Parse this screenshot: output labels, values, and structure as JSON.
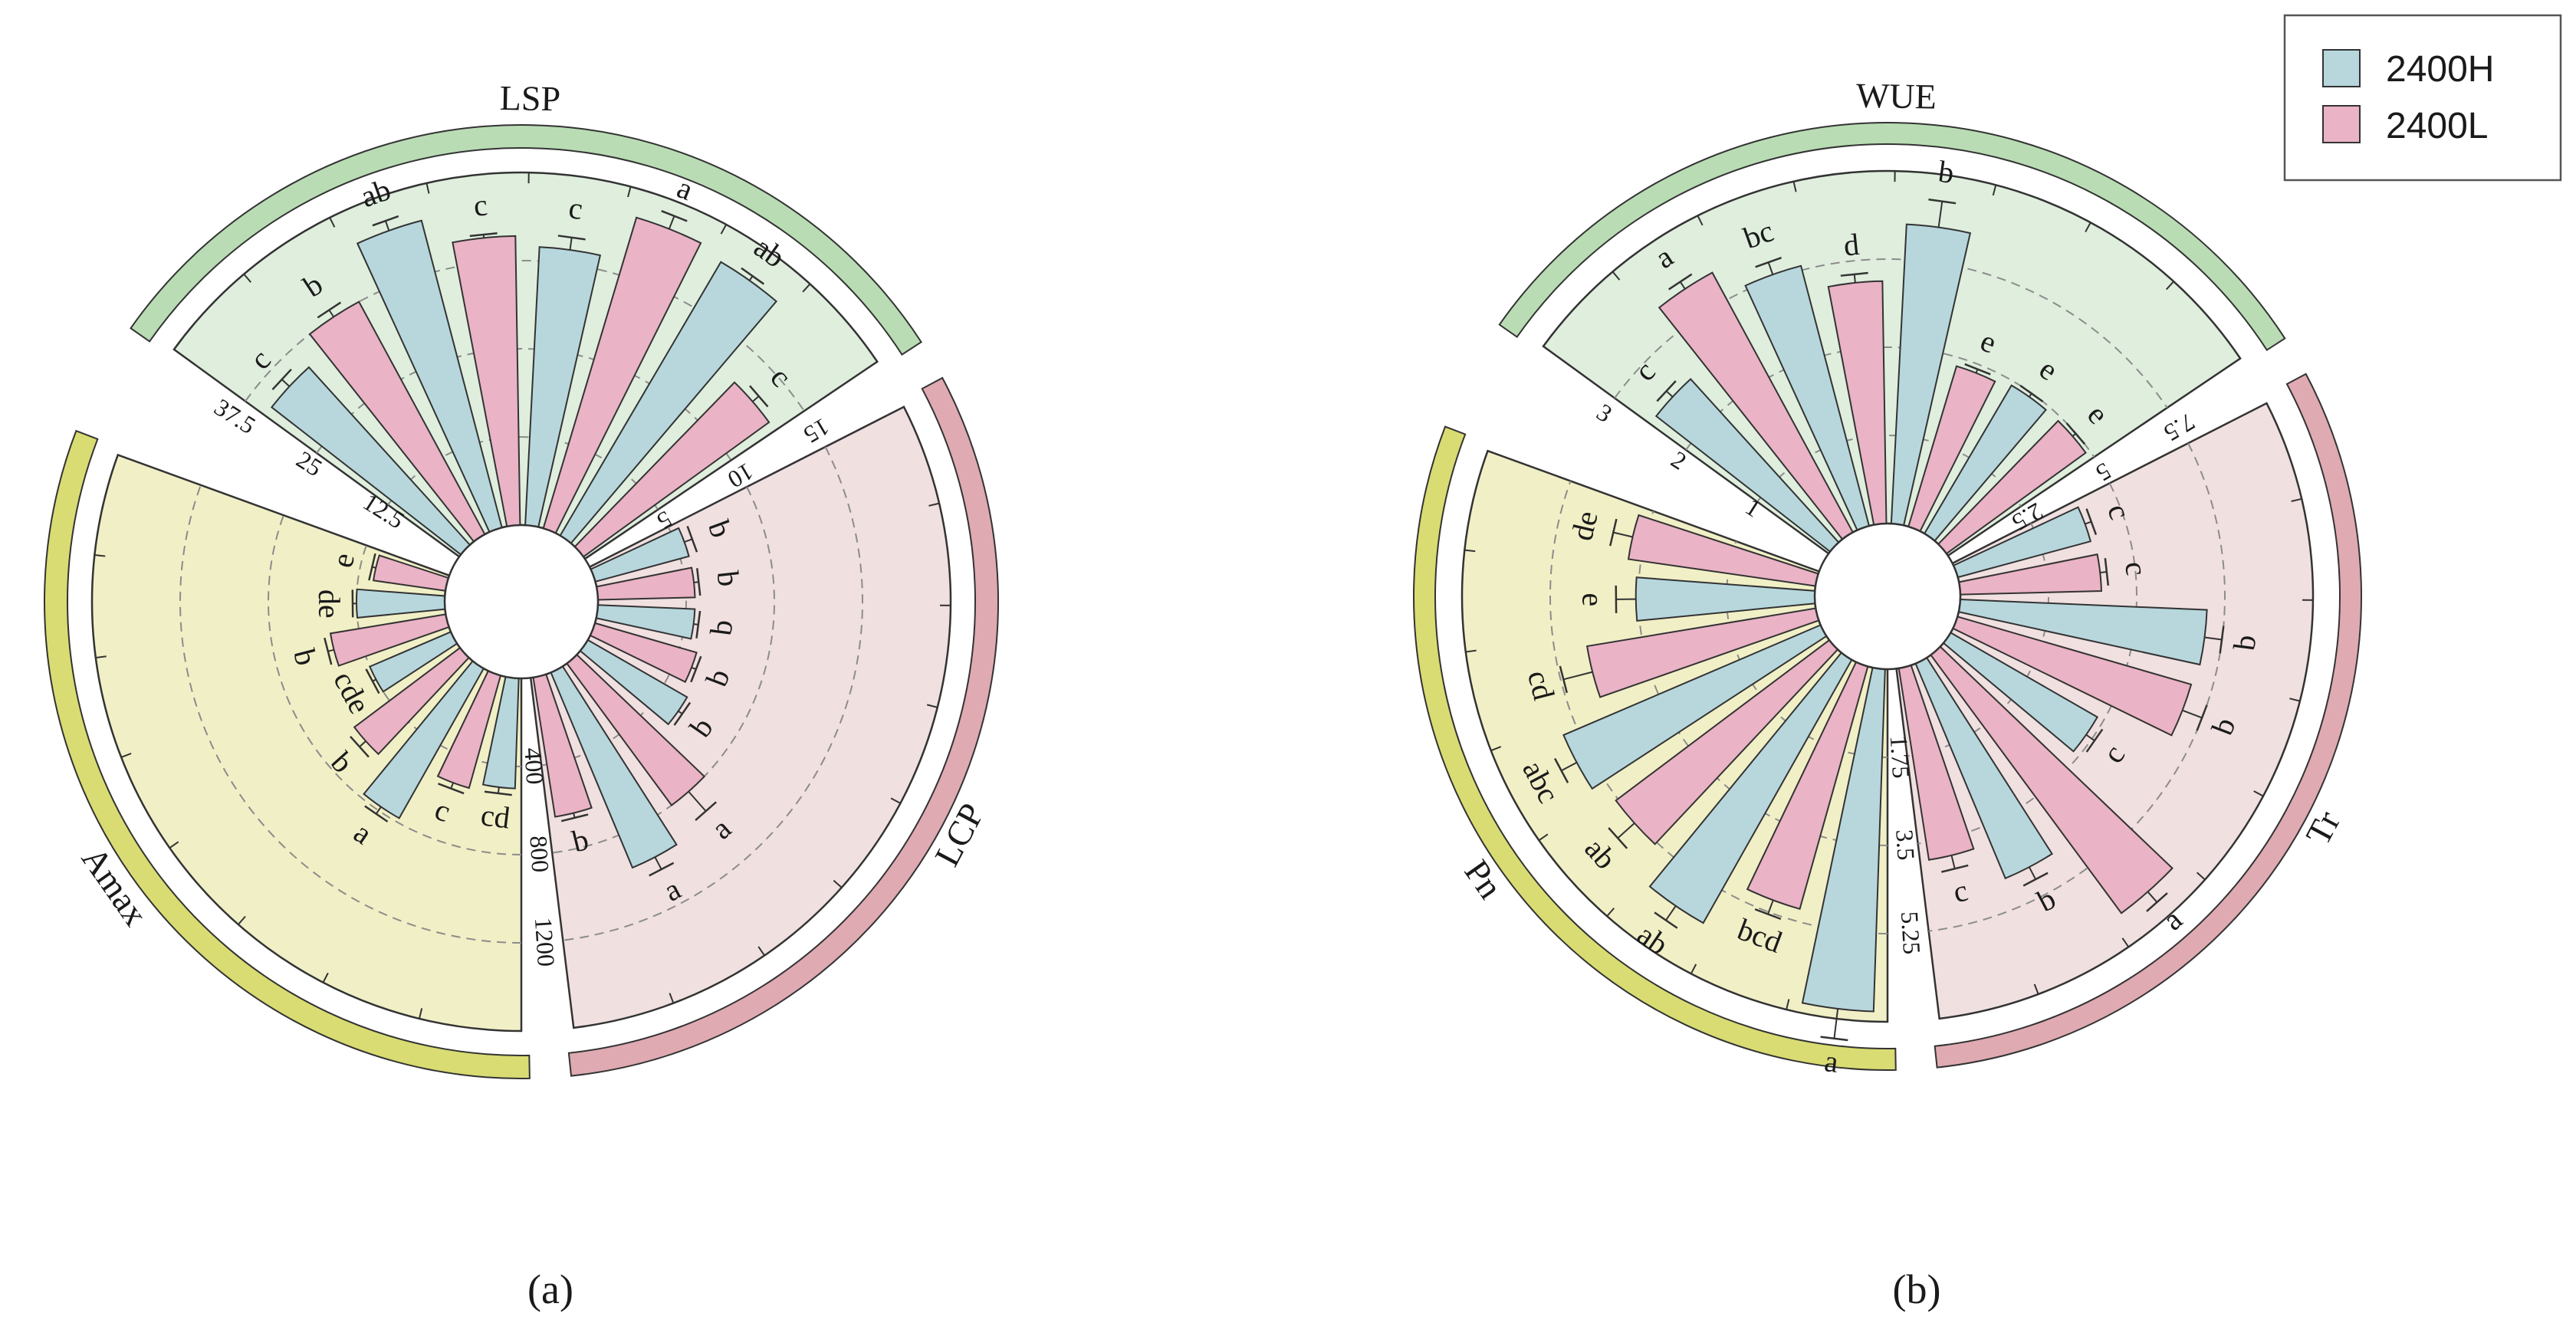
{
  "colors": {
    "series_2400H": "#b7d7dd",
    "series_2400L": "#eab3c6",
    "sector_LSP": "#dfeedd",
    "sector_WUE": "#dfeedd",
    "sector_LCP": "#f1e0e0",
    "sector_Tr": "#f1e0e0",
    "sector_Amax": "#f1efc6",
    "sector_Pn": "#f1efc6",
    "band_green": "#b9dcb4",
    "band_pink": "#dfaab2",
    "band_yellow": "#d9dc72",
    "outline": "#333333",
    "grid": "#8c8c8c"
  },
  "legend": {
    "items": [
      {
        "label": "2400H",
        "color": "#b7d7dd"
      },
      {
        "label": "2400L",
        "color": "#eab3c6"
      }
    ]
  },
  "panels": [
    {
      "label": "(a)"
    },
    {
      "label": "(b)"
    }
  ],
  "chart_data": [
    {
      "type": "bar",
      "layout": "circular",
      "series_names": [
        "2400H",
        "2400L"
      ],
      "sectors": [
        {
          "name": "LSP",
          "color_key": "sector_LSP",
          "band_key": "band_green",
          "ticks": [
            "12.5",
            "25",
            "37.5"
          ],
          "max": 50,
          "bars": [
            {
              "series": "2400H",
              "value": 34.0,
              "err": 1.5,
              "letter": "c"
            },
            {
              "series": "2400L",
              "value": 37.5,
              "err": 1.2,
              "letter": "b"
            },
            {
              "series": "2400H",
              "value": 45.0,
              "err": 1.5,
              "letter": "ab"
            },
            {
              "series": "2400L",
              "value": 41.0,
              "err": 0.5,
              "letter": "c"
            },
            {
              "series": "2400H",
              "value": 39.5,
              "err": 1.8,
              "letter": "c"
            },
            {
              "series": "2400L",
              "value": 46.0,
              "err": 2.0,
              "letter": "a"
            },
            {
              "series": "2400H",
              "value": 45.0,
              "err": 0.8,
              "letter": "ab"
            },
            {
              "series": "2400L",
              "value": 32.5,
              "err": 1.2,
              "letter": "c"
            }
          ]
        },
        {
          "name": "LCP",
          "color_key": "sector_LCP",
          "band_key": "band_pink",
          "ticks": [
            "5",
            "10",
            "15"
          ],
          "max": 20,
          "bars": [
            {
              "series": "2400H",
              "value": 5.5,
              "err": 0.5,
              "letter": "b"
            },
            {
              "series": "2400L",
              "value": 5.5,
              "err": 0.3,
              "letter": "b"
            },
            {
              "series": "2400H",
              "value": 5.5,
              "err": 0.3,
              "letter": "b"
            },
            {
              "series": "2400L",
              "value": 6.0,
              "err": 0.3,
              "letter": "b"
            },
            {
              "series": "2400H",
              "value": 6.5,
              "err": 0.3,
              "letter": "b"
            },
            {
              "series": "2400L",
              "value": 10.0,
              "err": 1.5,
              "letter": "a"
            },
            {
              "series": "2400H",
              "value": 12.0,
              "err": 0.8,
              "letter": "a"
            },
            {
              "series": "2400L",
              "value": 8.0,
              "err": 0.3,
              "letter": "b"
            }
          ]
        },
        {
          "name": "Amax",
          "color_key": "sector_Amax",
          "band_key": "band_yellow",
          "ticks": [
            "400",
            "800",
            "1200"
          ],
          "max": 1600,
          "bars": [
            {
              "series": "2400H",
              "value": 500,
              "err": 30,
              "letter": "cd"
            },
            {
              "series": "2400L",
              "value": 530,
              "err": 30,
              "letter": "c"
            },
            {
              "series": "2400H",
              "value": 780,
              "err": 40,
              "letter": "a"
            },
            {
              "series": "2400L",
              "value": 600,
              "err": 40,
              "letter": "b"
            },
            {
              "series": "2400H",
              "value": 400,
              "err": 20,
              "letter": "cde"
            },
            {
              "series": "2400L",
              "value": 530,
              "err": 30,
              "letter": "b"
            },
            {
              "series": "2400H",
              "value": 400,
              "err": 20,
              "letter": "de"
            },
            {
              "series": "2400L",
              "value": 330,
              "err": 20,
              "letter": "e"
            }
          ]
        }
      ]
    },
    {
      "type": "bar",
      "layout": "circular",
      "series_names": [
        "2400H",
        "2400L"
      ],
      "sectors": [
        {
          "name": "WUE",
          "color_key": "sector_WUE",
          "band_key": "band_green",
          "ticks": [
            "1",
            "2",
            "3"
          ],
          "max": 4,
          "bars": [
            {
              "series": "2400H",
              "value": 2.5,
              "err": 0.1,
              "letter": "c"
            },
            {
              "series": "2400L",
              "value": 3.35,
              "err": 0.1,
              "letter": "a"
            },
            {
              "series": "2400H",
              "value": 3.05,
              "err": 0.15,
              "letter": "bc"
            },
            {
              "series": "2400L",
              "value": 2.75,
              "err": 0.1,
              "letter": "d"
            },
            {
              "series": "2400H",
              "value": 3.4,
              "err": 0.3,
              "letter": "b"
            },
            {
              "series": "2400L",
              "value": 1.9,
              "err": 0.05,
              "letter": "e"
            },
            {
              "series": "2400H",
              "value": 1.95,
              "err": 0.05,
              "letter": "e"
            },
            {
              "series": "2400L",
              "value": 1.95,
              "err": 0.05,
              "letter": "e"
            }
          ]
        },
        {
          "name": "Tr",
          "color_key": "sector_Tr",
          "band_key": "band_pink",
          "ticks": [
            "2.5",
            "5",
            "7.5"
          ],
          "max": 10,
          "bars": [
            {
              "series": "2400H",
              "value": 3.9,
              "err": 0.2,
              "letter": "c"
            },
            {
              "series": "2400L",
              "value": 4.0,
              "err": 0.2,
              "letter": "c"
            },
            {
              "series": "2400H",
              "value": 7.0,
              "err": 0.5,
              "letter": "b"
            },
            {
              "series": "2400L",
              "value": 6.9,
              "err": 0.6,
              "letter": "b"
            },
            {
              "series": "2400H",
              "value": 4.8,
              "err": 0.3,
              "letter": "c"
            },
            {
              "series": "2400L",
              "value": 9.1,
              "err": 0.4,
              "letter": "a"
            },
            {
              "series": "2400H",
              "value": 6.6,
              "err": 0.4,
              "letter": "b"
            },
            {
              "series": "2400L",
              "value": 5.5,
              "err": 0.4,
              "letter": "c"
            }
          ]
        },
        {
          "name": "Pn",
          "color_key": "sector_Pn",
          "band_key": "band_yellow",
          "ticks": [
            "1.75",
            "3.5",
            "5.25"
          ],
          "max": 7,
          "bars": [
            {
              "series": "2400H",
              "value": 6.8,
              "err": 0.6,
              "letter": "a"
            },
            {
              "series": "2400L",
              "value": 5.0,
              "err": 0.3,
              "letter": "bcd"
            },
            {
              "series": "2400H",
              "value": 6.0,
              "err": 0.35,
              "letter": "ab"
            },
            {
              "series": "2400L",
              "value": 5.3,
              "err": 0.45,
              "letter": "ab"
            },
            {
              "series": "2400H",
              "value": 5.55,
              "err": 0.35,
              "letter": "abc"
            },
            {
              "series": "2400L",
              "value": 4.6,
              "err": 0.6,
              "letter": "cd"
            },
            {
              "series": "2400H",
              "value": 3.55,
              "err": 0.4,
              "letter": "e"
            },
            {
              "series": "2400L",
              "value": 3.75,
              "err": 0.4,
              "letter": "de"
            }
          ]
        }
      ]
    }
  ]
}
